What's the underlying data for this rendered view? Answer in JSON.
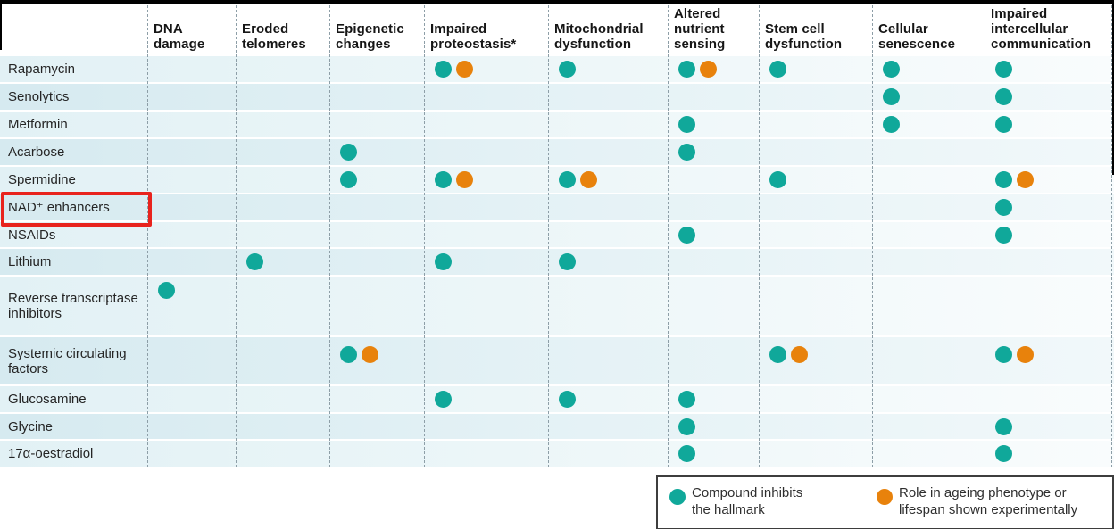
{
  "chart_data": {
    "type": "table",
    "description": "Matrix of compounds (rows) versus hallmarks of ageing (columns); teal dot = compound inhibits the hallmark, orange dot = role in ageing phenotype or lifespan shown experimentally",
    "columns": [
      "DNA damage",
      "Eroded telomeres",
      "Epigenetic changes",
      "Impaired proteostasis*",
      "Mitochondrial dysfunction",
      "Altered nutrient sensing",
      "Stem cell dysfunction",
      "Cellular senescence",
      "Impaired intercellular communication"
    ],
    "cell_codes": {
      "T": "teal dot — compound inhibits the hallmark",
      "TO": "teal dot + orange dot — inhibits hallmark and role shown experimentally",
      "": "no dot"
    },
    "rows": [
      {
        "label": "Rapamycin",
        "cells": [
          "",
          "",
          "",
          "TO",
          "T",
          "TO",
          "T",
          "T",
          "T"
        ]
      },
      {
        "label": "Senolytics",
        "cells": [
          "",
          "",
          "",
          "",
          "",
          "",
          "",
          "T",
          "T"
        ]
      },
      {
        "label": "Metformin",
        "cells": [
          "",
          "",
          "",
          "",
          "",
          "T",
          "",
          "T",
          "T"
        ]
      },
      {
        "label": "Acarbose",
        "cells": [
          "",
          "",
          "T",
          "",
          "",
          "T",
          "",
          "",
          ""
        ]
      },
      {
        "label": "Spermidine",
        "cells": [
          "",
          "",
          "T",
          "TO",
          "TO",
          "",
          "T",
          "",
          "TO"
        ]
      },
      {
        "label": "NAD⁺ enhancers",
        "cells": [
          "",
          "",
          "",
          "",
          "",
          "",
          "",
          "",
          "T"
        ]
      },
      {
        "label": "NSAIDs",
        "cells": [
          "",
          "",
          "",
          "",
          "",
          "T",
          "",
          "",
          "T"
        ]
      },
      {
        "label": "Lithium",
        "cells": [
          "",
          "T",
          "",
          "T",
          "T",
          "",
          "",
          "",
          ""
        ]
      },
      {
        "label": "Reverse transcriptase inhibitors",
        "cells": [
          "T",
          "",
          "",
          "",
          "",
          "",
          "",
          "",
          ""
        ]
      },
      {
        "label": "Systemic circulating factors",
        "cells": [
          "",
          "",
          "TO",
          "",
          "",
          "",
          "TO",
          "",
          "TO"
        ]
      },
      {
        "label": "Glucosamine",
        "cells": [
          "",
          "",
          "",
          "T",
          "T",
          "T",
          "",
          "",
          ""
        ]
      },
      {
        "label": "Glycine",
        "cells": [
          "",
          "",
          "",
          "",
          "",
          "T",
          "",
          "",
          "T"
        ]
      },
      {
        "label": "17α-oestradiol",
        "cells": [
          "",
          "",
          "",
          "",
          "",
          "T",
          "",
          "",
          "T"
        ]
      }
    ],
    "legend_position": "bottom-right"
  },
  "legend": {
    "items": [
      {
        "color": "#10a89a",
        "lines": [
          "Compound inhibits",
          "the hallmark"
        ]
      },
      {
        "color": "#e8820c",
        "lines": [
          "Role in ageing phenotype or",
          "lifespan shown experimentally"
        ]
      }
    ]
  },
  "annotation": {
    "highlighted_row": "NAD⁺ enhancers",
    "box_color": "#e8231d"
  },
  "colors": {
    "teal": "#10a89a",
    "orange": "#e8820c"
  }
}
